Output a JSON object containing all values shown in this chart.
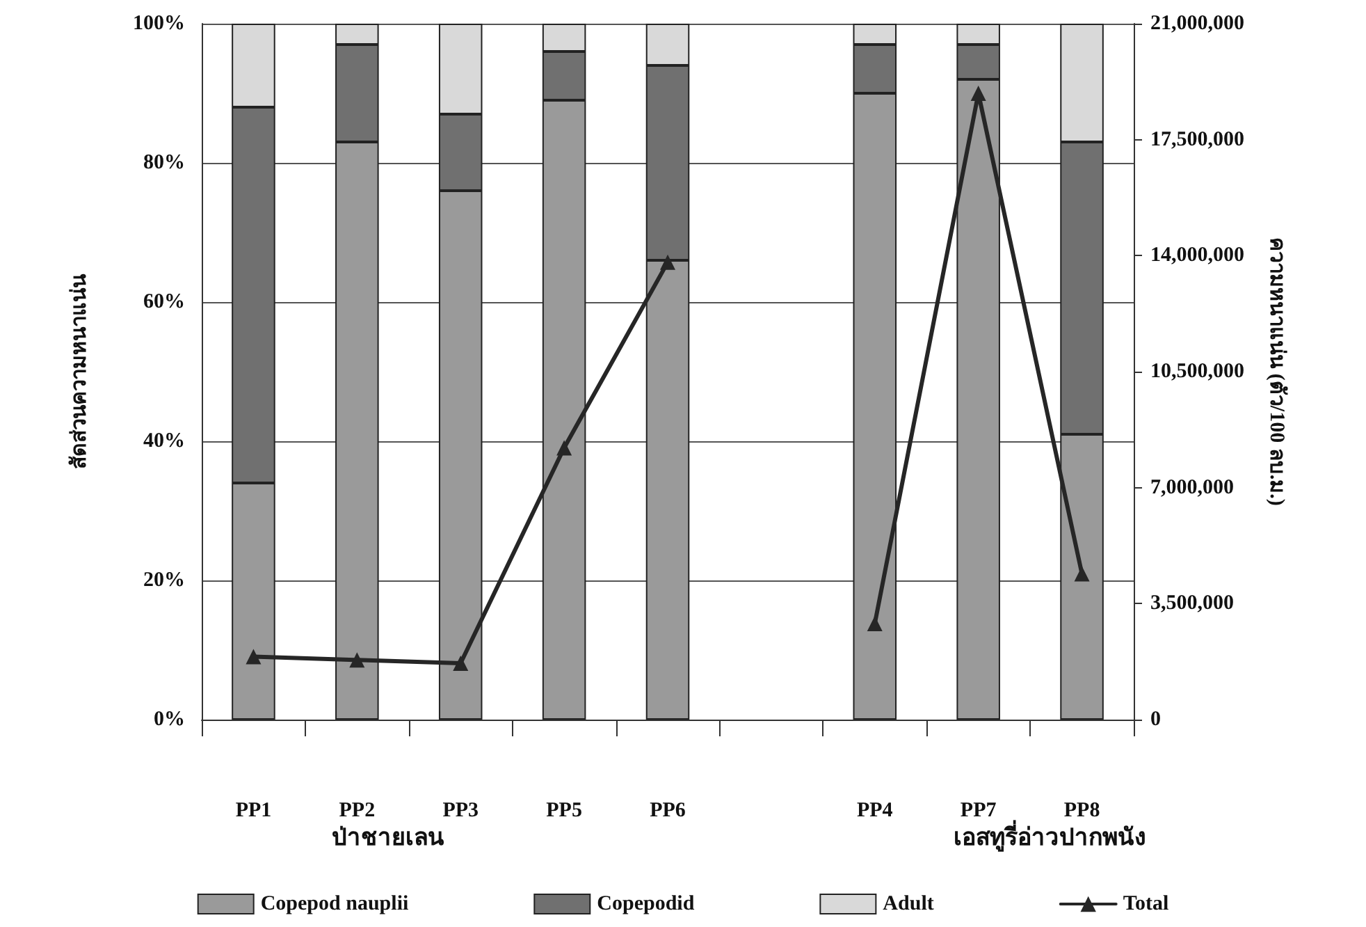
{
  "chart_data": {
    "type": "bar",
    "stacked": true,
    "ylabel": "สัดส่วนความหนาแน่น",
    "y2label": "ความหนาแน่น (ตัว/100 ลบ.ม.)",
    "categories": [
      "PP1",
      "PP2",
      "PP3",
      "PP5",
      "PP6",
      null,
      "PP4",
      "PP7",
      "PP8"
    ],
    "series": [
      {
        "name": "Copepod nauplii",
        "color": "#9a9a9a",
        "values": [
          34,
          83,
          76,
          89,
          66,
          null,
          90,
          92,
          41
        ]
      },
      {
        "name": "Copepodid",
        "color": "#707070",
        "values": [
          54,
          14,
          11,
          7,
          28,
          null,
          7,
          5,
          42
        ]
      },
      {
        "name": "Adult",
        "color": "#d9d9d9",
        "values": [
          12,
          3,
          13,
          4,
          6,
          null,
          3,
          3,
          17
        ]
      },
      {
        "name": "Total",
        "type": "line",
        "axis": "y2",
        "color": "#262626",
        "marker": "triangle",
        "values": [
          1900000,
          1800000,
          1700000,
          8200000,
          13800000,
          null,
          2900000,
          18900000,
          4400000
        ]
      }
    ],
    "ylim": [
      0,
      100
    ],
    "yticks": [
      {
        "value": 0,
        "label": "0%"
      },
      {
        "value": 20,
        "label": "20%"
      },
      {
        "value": 40,
        "label": "40%"
      },
      {
        "value": 60,
        "label": "60%"
      },
      {
        "value": 80,
        "label": "80%"
      },
      {
        "value": 100,
        "label": "100%"
      }
    ],
    "y2lim": [
      0,
      21000000
    ],
    "y2ticks": [
      {
        "value": 0,
        "label": "0"
      },
      {
        "value": 3500000,
        "label": "3,500,000"
      },
      {
        "value": 7000000,
        "label": "7,000,000"
      },
      {
        "value": 10500000,
        "label": "10,500,000"
      },
      {
        "value": 14000000,
        "label": "14,000,000"
      },
      {
        "value": 17500000,
        "label": "17,500,000"
      },
      {
        "value": 21000000,
        "label": "21,000,000"
      }
    ],
    "annotations": [
      "ป่าชายเลน",
      "เอสทูรี่อ่าวปากพนัง"
    ],
    "grid": "y",
    "legend": "bottom"
  }
}
